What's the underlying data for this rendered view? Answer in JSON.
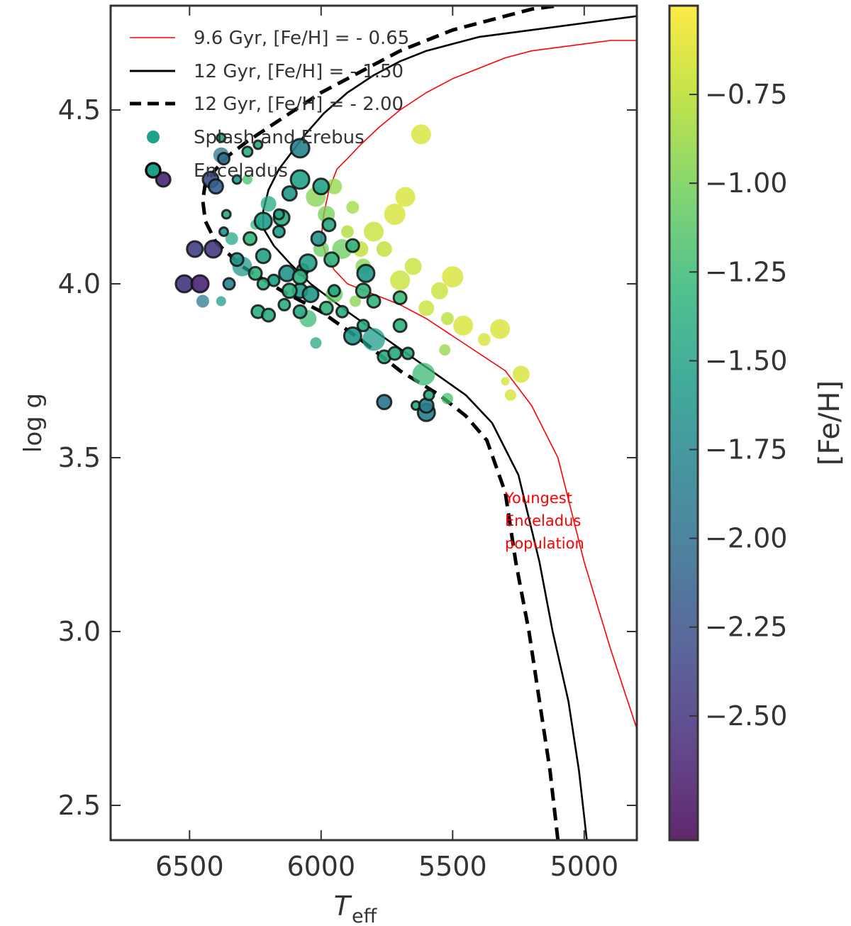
{
  "chart_data": {
    "type": "scatter",
    "xlabel": "T",
    "xlabel_sub": "eff",
    "ylabel": "log g",
    "xlim": [
      6800,
      4800
    ],
    "ylim": [
      4.8,
      2.4
    ],
    "xticks": [
      "6500",
      "6000",
      "5500",
      "5000"
    ],
    "yticks": [
      "2.5",
      "3.0",
      "3.5",
      "4.0",
      "4.5"
    ],
    "colorbar": {
      "label": "[Fe/H]",
      "range": [
        -2.85,
        -0.5
      ],
      "ticks": [
        "−0.75",
        "−1.00",
        "−1.25",
        "−1.50",
        "−1.75",
        "−2.00",
        "−2.25",
        "−2.50"
      ],
      "colormap": [
        "#440154",
        "#482878",
        "#3e4989",
        "#31688e",
        "#26828e",
        "#1f9e89",
        "#35b779",
        "#6ece58",
        "#b5de2b",
        "#fde725"
      ]
    },
    "legend": {
      "position": "upper-left",
      "entries": [
        {
          "label": "9.6 Gyr, [Fe/H] = - 0.65",
          "style": "line-red"
        },
        {
          "label": "12 Gyr, [Fe/H] = - 1.50",
          "style": "line-solid"
        },
        {
          "label": "12 Gyr, [Fe/H] = - 2.00",
          "style": "line-dashed"
        },
        {
          "label": "Splash and Erebus",
          "style": "marker-plain"
        },
        {
          "label": "Enceladus",
          "style": "marker-edged"
        }
      ]
    },
    "annotation": {
      "lines": [
        "Youngest",
        "Enceladus",
        "population"
      ],
      "color": "#ff0000"
    },
    "isochrones": [
      {
        "name": "9.6 Gyr, [Fe/H] = - 0.65",
        "color": "#ff0000",
        "style": "solid",
        "x": [
          4800,
          4900,
          5000,
          5100,
          5200,
          5300,
          5400,
          5500,
          5600,
          5700,
          5800,
          5900,
          5950,
          5980,
          6000,
          5990,
          5970,
          5940,
          5900,
          5850,
          5780,
          5700,
          5600,
          5500,
          5400,
          5300,
          5200,
          5100,
          5000,
          4900,
          4800
        ],
        "y": [
          2.72,
          2.95,
          3.2,
          3.5,
          3.65,
          3.75,
          3.8,
          3.85,
          3.9,
          3.94,
          3.97,
          4.0,
          4.04,
          4.08,
          4.13,
          4.2,
          4.27,
          4.33,
          4.36,
          4.4,
          4.45,
          4.5,
          4.55,
          4.59,
          4.62,
          4.65,
          4.67,
          4.68,
          4.69,
          4.7,
          4.7
        ]
      },
      {
        "name": "12 Gyr, [Fe/H] = - 1.50",
        "color": "#000000",
        "style": "solid",
        "x": [
          4990,
          5020,
          5060,
          5120,
          5170,
          5250,
          5350,
          5450,
          5600,
          5750,
          5900,
          6040,
          6120,
          6180,
          6220,
          6220,
          6200,
          6160,
          6110,
          6060,
          5990,
          5900,
          5800,
          5700,
          5600,
          5500,
          5400,
          5300,
          5200,
          5100,
          5000,
          4900,
          4800
        ],
        "y": [
          2.4,
          2.6,
          2.8,
          3.0,
          3.2,
          3.45,
          3.6,
          3.68,
          3.76,
          3.84,
          3.92,
          4.0,
          4.06,
          4.11,
          4.16,
          4.21,
          4.27,
          4.33,
          4.38,
          4.43,
          4.49,
          4.55,
          4.6,
          4.64,
          4.67,
          4.69,
          4.71,
          4.72,
          4.73,
          4.74,
          4.75,
          4.76,
          4.77
        ]
      },
      {
        "name": "12 Gyr, [Fe/H] = - 2.00",
        "color": "#000000",
        "style": "dashed",
        "x": [
          5100,
          5130,
          5170,
          5210,
          5260,
          5300,
          5370,
          5450,
          5550,
          5700,
          5850,
          6000,
          6150,
          6300,
          6400,
          6440,
          6450,
          6440,
          6400,
          6350,
          6280,
          6200,
          6100,
          6000,
          5900,
          5800,
          5700,
          5600,
          5500,
          5400,
          5300,
          5200,
          5100
        ],
        "y": [
          2.4,
          2.6,
          2.8,
          3.0,
          3.2,
          3.4,
          3.55,
          3.62,
          3.68,
          3.75,
          3.84,
          3.92,
          3.98,
          4.05,
          4.12,
          4.18,
          4.24,
          4.29,
          4.33,
          4.37,
          4.41,
          4.45,
          4.5,
          4.55,
          4.59,
          4.63,
          4.67,
          4.7,
          4.73,
          4.75,
          4.77,
          4.79,
          4.8
        ]
      }
    ],
    "series": [
      {
        "name": "Splash and Erebus",
        "points": [
          [
            6450,
            3.95,
            -1.9,
            9
          ],
          [
            6380,
            3.95,
            -1.55,
            7
          ],
          [
            6340,
            4.13,
            -1.45,
            9
          ],
          [
            6300,
            4.05,
            -1.6,
            14
          ],
          [
            6250,
            4.17,
            -1.3,
            7
          ],
          [
            6280,
            4.3,
            -1.2,
            7
          ],
          [
            6200,
            4.23,
            -1.45,
            11
          ],
          [
            6380,
            4.37,
            -1.95,
            11
          ],
          [
            6050,
            3.9,
            -1.25,
            12
          ],
          [
            6020,
            3.83,
            -1.45,
            8
          ],
          [
            5950,
            3.97,
            -1.1,
            12
          ],
          [
            5920,
            4.1,
            -1.05,
            14
          ],
          [
            5980,
            4.2,
            -1.0,
            12
          ],
          [
            6020,
            4.25,
            -0.95,
            14
          ],
          [
            5950,
            4.28,
            -0.9,
            11
          ],
          [
            5900,
            4.15,
            -0.8,
            9
          ],
          [
            5880,
            4.22,
            -0.85,
            9
          ],
          [
            5850,
            4.1,
            -0.75,
            11
          ],
          [
            5800,
            4.15,
            -0.7,
            14
          ],
          [
            5760,
            4.1,
            -0.75,
            11
          ],
          [
            5720,
            4.2,
            -0.65,
            15
          ],
          [
            5700,
            4.01,
            -0.7,
            14
          ],
          [
            5650,
            4.05,
            -0.7,
            12
          ],
          [
            5600,
            3.93,
            -0.7,
            11
          ],
          [
            5550,
            3.98,
            -0.7,
            12
          ],
          [
            5520,
            3.9,
            -0.75,
            9
          ],
          [
            5500,
            4.02,
            -0.65,
            15
          ],
          [
            5460,
            3.88,
            -0.65,
            14
          ],
          [
            5380,
            3.84,
            -0.65,
            9
          ],
          [
            5320,
            3.87,
            -0.65,
            14
          ],
          [
            5240,
            3.74,
            -0.65,
            12
          ],
          [
            5280,
            3.68,
            -0.65,
            8
          ],
          [
            5300,
            3.72,
            -0.65,
            6
          ],
          [
            5610,
            3.74,
            -1.25,
            16
          ],
          [
            5530,
            3.81,
            -0.9,
            8
          ],
          [
            5520,
            3.67,
            -1.2,
            8
          ],
          [
            5680,
            4.25,
            -0.65,
            14
          ],
          [
            5620,
            4.43,
            -0.65,
            14
          ],
          [
            5800,
            3.84,
            -1.55,
            16
          ],
          [
            5840,
            4.05,
            -0.95,
            11
          ],
          [
            5870,
            3.95,
            -0.95,
            8
          ],
          [
            6000,
            4.1,
            -1.05,
            11
          ]
        ]
      },
      {
        "name": "Enceladus",
        "points": [
          [
            6600,
            4.3,
            -2.6,
            10
          ],
          [
            6520,
            4.0,
            -2.5,
            12
          ],
          [
            6480,
            4.1,
            -2.4,
            11
          ],
          [
            6410,
            4.1,
            -2.45,
            12
          ],
          [
            6420,
            4.3,
            -2.3,
            11
          ],
          [
            6460,
            4.0,
            -2.6,
            12
          ],
          [
            6400,
            4.28,
            -2.15,
            10
          ],
          [
            6370,
            4.36,
            -2.0,
            8
          ],
          [
            6370,
            4.15,
            -1.65,
            6
          ],
          [
            6360,
            4.2,
            -1.45,
            6
          ],
          [
            6350,
            4.0,
            -1.8,
            8
          ],
          [
            6320,
            4.07,
            -1.65,
            9
          ],
          [
            6320,
            4.3,
            -1.55,
            6
          ],
          [
            6240,
            3.92,
            -1.4,
            9
          ],
          [
            6200,
            3.91,
            -1.4,
            9
          ],
          [
            6180,
            4.01,
            -1.55,
            8
          ],
          [
            6140,
            3.94,
            -1.4,
            8
          ],
          [
            6130,
            4.03,
            -1.65,
            11
          ],
          [
            6080,
            3.92,
            -1.45,
            9
          ],
          [
            6080,
            3.98,
            -1.55,
            10
          ],
          [
            6070,
            4.04,
            -1.7,
            8
          ],
          [
            6050,
            4.06,
            -1.5,
            12
          ],
          [
            6040,
            3.97,
            -1.6,
            11
          ],
          [
            6120,
            3.98,
            -1.35,
            10
          ],
          [
            6160,
            4.15,
            -1.55,
            8
          ],
          [
            6220,
            4.0,
            -1.35,
            8
          ],
          [
            6220,
            4.08,
            -1.5,
            10
          ],
          [
            6250,
            4.03,
            -1.35,
            9
          ],
          [
            6270,
            4.13,
            -1.3,
            9
          ],
          [
            6220,
            4.18,
            -1.55,
            12
          ],
          [
            6120,
            4.26,
            -1.6,
            10
          ],
          [
            6150,
            4.19,
            -1.4,
            11
          ],
          [
            6080,
            4.3,
            -1.5,
            13
          ],
          [
            6010,
            4.13,
            -1.65,
            10
          ],
          [
            6160,
            4.2,
            -1.5,
            7
          ],
          [
            6080,
            4.02,
            -1.35,
            10
          ],
          [
            5980,
            3.93,
            -1.3,
            9
          ],
          [
            5950,
            3.98,
            -1.45,
            8
          ],
          [
            5920,
            3.92,
            -1.4,
            8
          ],
          [
            5880,
            3.85,
            -1.6,
            12
          ],
          [
            5840,
            3.88,
            -1.45,
            8
          ],
          [
            5840,
            3.98,
            -1.3,
            10
          ],
          [
            5830,
            4.03,
            -1.6,
            12
          ],
          [
            5880,
            4.11,
            -1.35,
            9
          ],
          [
            5800,
            3.95,
            -1.3,
            9
          ],
          [
            5760,
            3.79,
            -1.4,
            9
          ],
          [
            5720,
            3.8,
            -1.45,
            9
          ],
          [
            5700,
            3.88,
            -1.35,
            9
          ],
          [
            5700,
            3.96,
            -1.25,
            9
          ],
          [
            5670,
            3.8,
            -1.45,
            8
          ],
          [
            5760,
            3.66,
            -1.95,
            10
          ],
          [
            5640,
            3.65,
            -1.45,
            6
          ],
          [
            5600,
            3.63,
            -1.85,
            12
          ],
          [
            5600,
            3.65,
            -1.85,
            10
          ],
          [
            5590,
            3.68,
            -1.45,
            7
          ],
          [
            5960,
            4.07,
            -1.35,
            10
          ],
          [
            6080,
            4.39,
            -1.8,
            13
          ],
          [
            5970,
            4.17,
            -1.45,
            9
          ],
          [
            6000,
            4.28,
            -1.5,
            11
          ],
          [
            6380,
            4.42,
            -1.5,
            6
          ],
          [
            6280,
            4.38,
            -1.4,
            7
          ],
          [
            6240,
            4.4,
            -1.45,
            6
          ]
        ]
      }
    ]
  }
}
